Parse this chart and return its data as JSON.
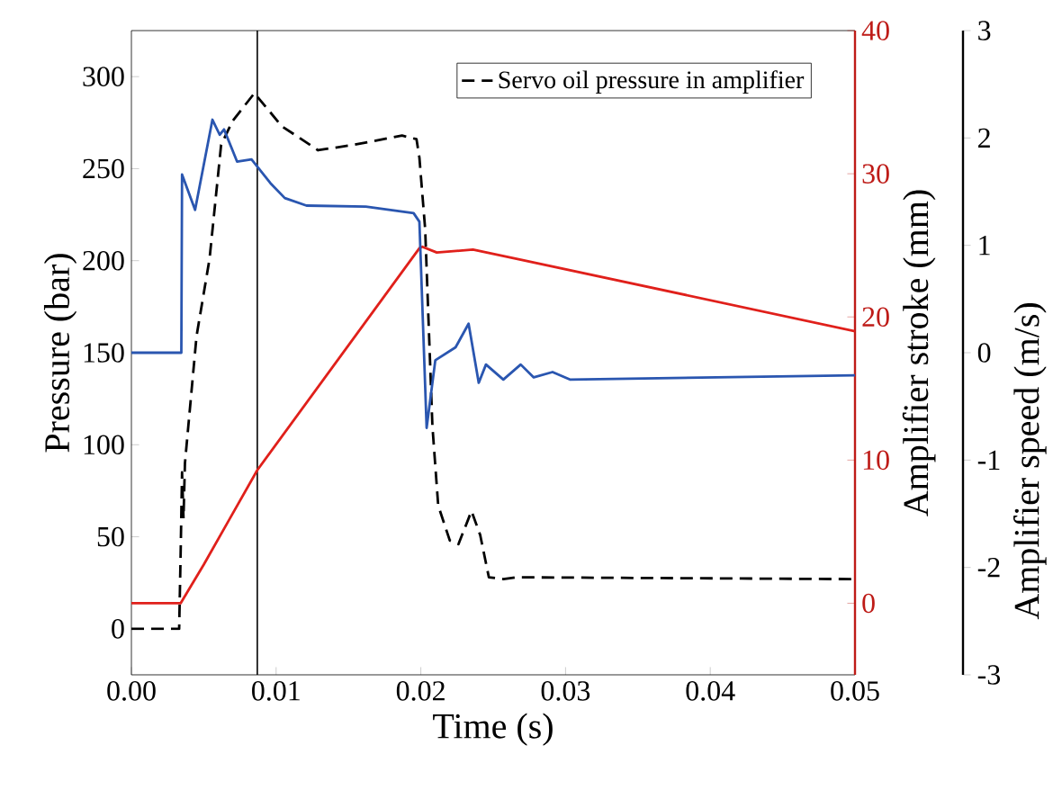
{
  "chart_data": {
    "type": "line",
    "xlabel": "Time (s)",
    "ylabel": "Pressure (bar)",
    "y2label": "Amplifier stroke (mm)",
    "y3label": "Amplifier speed (m/s)",
    "xlim": [
      0,
      0.05
    ],
    "xticks": [
      {
        "value": 0,
        "label": "0.00"
      },
      {
        "value": 0.01,
        "label": "0.01"
      },
      {
        "value": 0.02,
        "label": "0.02"
      },
      {
        "value": 0.03,
        "label": "0.03"
      },
      {
        "value": 0.04,
        "label": "0.04"
      },
      {
        "value": 0.05,
        "label": "0.05"
      }
    ],
    "ylim": [
      -25,
      325
    ],
    "yticks": [
      0,
      50,
      100,
      150,
      200,
      250,
      300
    ],
    "y2lim": [
      -5,
      40
    ],
    "y2ticks": [
      0,
      10,
      20,
      30,
      40
    ],
    "y3lim": [
      -3,
      3
    ],
    "y3ticks": [
      -3,
      -2,
      -1,
      0,
      1,
      2,
      3
    ],
    "legend": "top right",
    "marker": "none",
    "ref_lines": [
      {
        "axis": "x",
        "value": 0.0087,
        "color": "#000000"
      }
    ],
    "series": [
      {
        "name": "Servo oil pressure in amplifier",
        "color": "#000000",
        "line_style": "dashed",
        "x": [
          0,
          0.0033,
          0.0034,
          0.0035,
          0.0036,
          0.0037,
          0.0045,
          0.0054,
          0.0062,
          0.007,
          0.0085,
          0.0104,
          0.0129,
          0.0154,
          0.0187,
          0.0197,
          0.0199,
          0.0203,
          0.0208,
          0.0212,
          0.022,
          0.0226,
          0.0235,
          0.0241,
          0.0247,
          0.0257,
          0.0266,
          0.05
        ],
        "values": [
          0,
          0,
          40,
          85,
          60,
          90,
          159,
          201,
          263,
          276,
          291,
          273,
          260,
          263,
          268,
          266,
          256,
          217,
          110,
          67,
          48,
          46,
          64,
          51,
          28,
          27,
          28,
          27
        ]
      },
      {
        "color": "#2a56b0",
        "axis": "y3",
        "x": [
          0,
          0.00345,
          0.0035,
          0.0044,
          0.0056,
          0.0061,
          0.0064,
          0.0073,
          0.0083,
          0.0096,
          0.0106,
          0.0121,
          0.0162,
          0.0195,
          0.0199,
          0.0204,
          0.021,
          0.0224,
          0.0233,
          0.024,
          0.0245,
          0.0257,
          0.0269,
          0.0278,
          0.0291,
          0.0303,
          0.05
        ],
        "values": [
          0,
          0,
          1.66,
          1.33,
          2.17,
          2.03,
          2.08,
          1.78,
          1.8,
          1.58,
          1.44,
          1.37,
          1.36,
          1.3,
          1.22,
          -0.7,
          -0.07,
          0.05,
          0.27,
          -0.28,
          -0.11,
          -0.25,
          -0.11,
          -0.23,
          -0.18,
          -0.25,
          -0.21
        ]
      },
      {
        "color": "#e0201b",
        "axis": "y2",
        "x": [
          0,
          0.0034,
          0.005,
          0.0087,
          0.0199,
          0.0201,
          0.0211,
          0.0236,
          0.0269,
          0.05
        ],
        "values": [
          0,
          0,
          2.7,
          9.3,
          24.8,
          24.9,
          24.5,
          24.7,
          24.0,
          19.0
        ]
      }
    ]
  }
}
